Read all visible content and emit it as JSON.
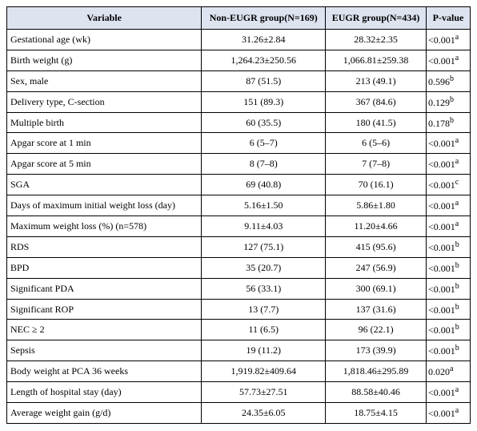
{
  "table": {
    "header": [
      "Variable",
      "Non-EUGR group(N=169)",
      "EUGR group(N=434)",
      "P-value"
    ],
    "rows": [
      {
        "label": "Gestational age (wk)",
        "non_eugr": "31.26±2.84",
        "eugr": "28.32±2.35",
        "p": "<0.001",
        "note": "a"
      },
      {
        "label": "Birth weight (g)",
        "non_eugr": "1,264.23±250.56",
        "eugr": "1,066.81±259.38",
        "p": "<0.001",
        "note": "a"
      },
      {
        "label": "Sex, male",
        "non_eugr": "87 (51.5)",
        "eugr": "213 (49.1)",
        "p": "0.596",
        "note": "b"
      },
      {
        "label": "Delivery type, C-section",
        "non_eugr": "151 (89.3)",
        "eugr": "367 (84.6)",
        "p": "0.129",
        "note": "b"
      },
      {
        "label": "Multiple birth",
        "non_eugr": "60 (35.5)",
        "eugr": "180 (41.5)",
        "p": "0.178",
        "note": "b"
      },
      {
        "label": "Apgar score at 1 min",
        "non_eugr": "6 (5–7)",
        "eugr": "6 (5–6)",
        "p": "<0.001",
        "note": "a"
      },
      {
        "label": "Apgar score at 5 min",
        "non_eugr": "8 (7–8)",
        "eugr": "7 (7–8)",
        "p": "<0.001",
        "note": "a"
      },
      {
        "label": "SGA",
        "non_eugr": "69 (40.8)",
        "eugr": "70 (16.1)",
        "p": "<0.001",
        "note": "c"
      },
      {
        "label": "Days of maximum initial weight loss (day)",
        "non_eugr": "5.16±1.50",
        "eugr": "5.86±1.80",
        "p": "<0.001",
        "note": "a"
      },
      {
        "label": "Maximum weight loss (%) (n=578)",
        "non_eugr": "9.11±4.03",
        "eugr": "11.20±4.66",
        "p": "<0.001",
        "note": "a"
      },
      {
        "label": "RDS",
        "non_eugr": "127 (75.1)",
        "eugr": "415 (95.6)",
        "p": "<0.001",
        "note": "b"
      },
      {
        "label": "BPD",
        "non_eugr": "35 (20.7)",
        "eugr": "247 (56.9)",
        "p": "<0.001",
        "note": "b"
      },
      {
        "label": "Significant PDA",
        "non_eugr": "56 (33.1)",
        "eugr": "300 (69.1)",
        "p": "<0.001",
        "note": "b"
      },
      {
        "label": "Significant ROP",
        "non_eugr": "13 (7.7)",
        "eugr": "137 (31.6)",
        "p": "<0.001",
        "note": "b"
      },
      {
        "label": "NEC ≥ 2",
        "non_eugr": "11 (6.5)",
        "eugr": "96 (22.1)",
        "p": "<0.001",
        "note": "b"
      },
      {
        "label": "Sepsis",
        "non_eugr": "19 (11.2)",
        "eugr": "173 (39.9)",
        "p": "<0.001",
        "note": "b"
      },
      {
        "label": "Body weight at PCA 36 weeks",
        "non_eugr": "1,919.82±409.64",
        "eugr": "1,818.46±295.89",
        "p": "0.020",
        "note": "a"
      },
      {
        "label": "Length of hospital stay (day)",
        "non_eugr": "57.73±27.51",
        "eugr": "88.58±40.46",
        "p": "<0.001",
        "note": "a"
      },
      {
        "label": "Average weight gain (g/d)",
        "non_eugr": "24.35±6.05",
        "eugr": "18.75±4.15",
        "p": "<0.001",
        "note": "a"
      }
    ]
  }
}
